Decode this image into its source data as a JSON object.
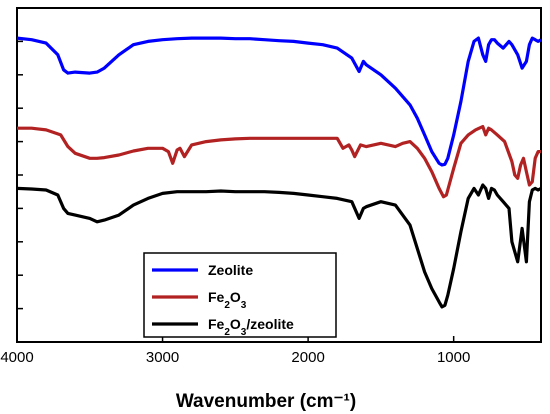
{
  "chart_data": {
    "type": "line",
    "title": "",
    "xlabel": "Wavenumber (cm⁻¹)",
    "ylabel": "",
    "xlim": [
      4000,
      400
    ],
    "x_reversed": true,
    "x_ticks": [
      "4000",
      "3000",
      "2000",
      "1000"
    ],
    "x_tick_values": [
      4000,
      3000,
      2000,
      1000
    ],
    "ylim": [
      0,
      10
    ],
    "y_tick_values": [
      1,
      2,
      3,
      4,
      5,
      6,
      7,
      8,
      9
    ],
    "legend": {
      "placement": "bottom-center",
      "entries": [
        {
          "label": "Zeolite",
          "color": "#0000ff"
        },
        {
          "label": "Fe",
          "sub1": "2",
          "mid": "O",
          "sub2": "3",
          "tail": "",
          "color": "#b22222"
        },
        {
          "label": "Fe",
          "sub1": "2",
          "mid": "O",
          "sub2": "3",
          "tail": "/zeolite",
          "color": "#000000"
        }
      ]
    },
    "series": [
      {
        "name": "Zeolite",
        "color": "#0000ff",
        "x": [
          4000,
          3900,
          3800,
          3720,
          3680,
          3650,
          3600,
          3500,
          3450,
          3400,
          3300,
          3200,
          3100,
          3000,
          2900,
          2800,
          2700,
          2600,
          2500,
          2400,
          2300,
          2200,
          2100,
          2000,
          1900,
          1800,
          1700,
          1650,
          1620,
          1600,
          1500,
          1400,
          1300,
          1250,
          1200,
          1150,
          1100,
          1080,
          1060,
          1040,
          1000,
          950,
          900,
          860,
          830,
          800,
          780,
          760,
          740,
          720,
          700,
          660,
          620,
          600,
          560,
          530,
          500,
          480,
          460,
          440,
          420,
          400
        ],
        "y": [
          9.1,
          9.05,
          8.95,
          8.6,
          8.15,
          8.05,
          8.08,
          8.05,
          8.08,
          8.2,
          8.6,
          8.9,
          9.0,
          9.05,
          9.08,
          9.1,
          9.1,
          9.1,
          9.08,
          9.08,
          9.05,
          9.02,
          9.0,
          8.95,
          8.9,
          8.8,
          8.5,
          8.1,
          8.4,
          8.3,
          8.0,
          7.6,
          7.1,
          6.7,
          6.2,
          5.7,
          5.35,
          5.3,
          5.32,
          5.5,
          6.2,
          7.2,
          8.4,
          9.0,
          9.1,
          8.6,
          8.4,
          8.9,
          9.05,
          9.05,
          8.95,
          8.8,
          9.0,
          8.9,
          8.6,
          8.2,
          8.4,
          8.9,
          9.1,
          9.05,
          9.0,
          9.05
        ]
      },
      {
        "name": "Fe2O3",
        "color": "#b22222",
        "x": [
          4000,
          3900,
          3800,
          3700,
          3650,
          3600,
          3500,
          3450,
          3400,
          3300,
          3200,
          3100,
          3000,
          2960,
          2930,
          2900,
          2880,
          2850,
          2800,
          2700,
          2600,
          2500,
          2400,
          2300,
          2200,
          2100,
          2000,
          1900,
          1800,
          1760,
          1720,
          1700,
          1680,
          1640,
          1600,
          1550,
          1500,
          1450,
          1400,
          1350,
          1300,
          1250,
          1200,
          1150,
          1100,
          1070,
          1050,
          1000,
          950,
          900,
          850,
          800,
          780,
          760,
          740,
          700,
          650,
          600,
          580,
          560,
          540,
          520,
          500,
          480,
          460,
          440,
          420,
          400
        ],
        "y": [
          6.4,
          6.4,
          6.35,
          6.2,
          5.85,
          5.65,
          5.5,
          5.5,
          5.52,
          5.6,
          5.72,
          5.8,
          5.8,
          5.7,
          5.35,
          5.75,
          5.8,
          5.55,
          5.9,
          6.0,
          6.05,
          6.08,
          6.1,
          6.1,
          6.1,
          6.1,
          6.1,
          6.1,
          6.1,
          5.8,
          5.9,
          5.75,
          5.55,
          5.9,
          5.85,
          5.9,
          5.95,
          5.9,
          5.85,
          5.95,
          6.0,
          5.8,
          5.5,
          5.1,
          4.6,
          4.35,
          4.4,
          5.2,
          5.95,
          6.2,
          6.35,
          6.45,
          6.2,
          6.4,
          6.35,
          6.2,
          6.0,
          5.4,
          5.0,
          4.9,
          5.3,
          5.5,
          5.1,
          4.7,
          4.8,
          5.5,
          5.7,
          5.7
        ]
      },
      {
        "name": "Fe2O3/zeolite",
        "color": "#000000",
        "x": [
          4000,
          3900,
          3800,
          3720,
          3680,
          3650,
          3600,
          3500,
          3450,
          3400,
          3300,
          3200,
          3100,
          3000,
          2900,
          2800,
          2700,
          2600,
          2500,
          2400,
          2300,
          2200,
          2100,
          2000,
          1900,
          1800,
          1700,
          1650,
          1620,
          1600,
          1500,
          1400,
          1300,
          1250,
          1200,
          1150,
          1100,
          1080,
          1060,
          1040,
          1000,
          950,
          900,
          860,
          830,
          800,
          780,
          760,
          740,
          720,
          700,
          660,
          620,
          600,
          560,
          530,
          500,
          480,
          460,
          440,
          420,
          400
        ],
        "y": [
          4.6,
          4.58,
          4.55,
          4.4,
          4.0,
          3.85,
          3.8,
          3.7,
          3.6,
          3.65,
          3.8,
          4.1,
          4.3,
          4.45,
          4.5,
          4.5,
          4.5,
          4.52,
          4.5,
          4.5,
          4.5,
          4.48,
          4.45,
          4.4,
          4.35,
          4.3,
          4.2,
          3.7,
          4.0,
          4.05,
          4.2,
          4.1,
          3.5,
          2.8,
          2.1,
          1.6,
          1.2,
          1.05,
          1.1,
          1.4,
          2.2,
          3.3,
          4.3,
          4.6,
          4.4,
          4.7,
          4.6,
          4.3,
          4.6,
          4.55,
          4.4,
          4.2,
          4.0,
          3.0,
          2.4,
          3.4,
          2.4,
          4.2,
          4.55,
          4.6,
          4.55,
          4.6
        ]
      }
    ]
  }
}
